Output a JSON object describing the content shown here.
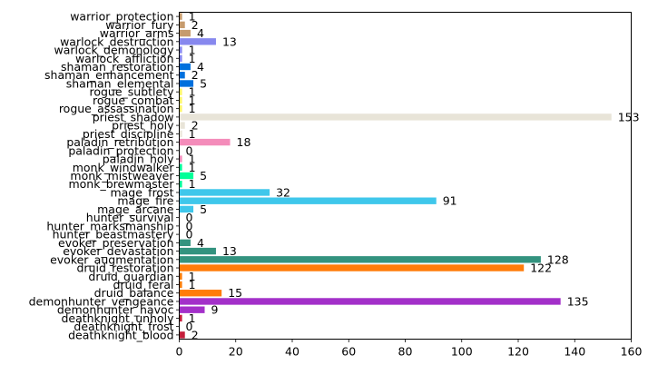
{
  "chart_data": {
    "type": "bar",
    "orientation": "horizontal",
    "categories": [
      "deathknight_blood",
      "deathknight_frost",
      "deathknight_unholy",
      "demonhunter_havoc",
      "demonhunter_vengeance",
      "druid_balance",
      "druid_feral",
      "druid_guardian",
      "druid_restoration",
      "evoker_augmentation",
      "evoker_devastation",
      "evoker_preservation",
      "hunter_beastmastery",
      "hunter_marksmanship",
      "hunter_survival",
      "mage_arcane",
      "mage_fire",
      "mage_frost",
      "monk_brewmaster",
      "monk_mistweaver",
      "monk_windwalker",
      "paladin_holy",
      "paladin_protection",
      "paladin_retribution",
      "priest_discipline",
      "priest_holy",
      "priest_shadow",
      "rogue_assassination",
      "rogue_combat",
      "rogue_subtlety",
      "shaman_elemental",
      "shaman_enhancement",
      "shaman_restoration",
      "warlock_affliction",
      "warlock_demonology",
      "warlock_destruction",
      "warrior_arms",
      "warrior_fury",
      "warrior_protection"
    ],
    "values": [
      2,
      0,
      1,
      9,
      135,
      15,
      1,
      1,
      122,
      128,
      13,
      4,
      0,
      0,
      0,
      5,
      91,
      32,
      1,
      5,
      1,
      1,
      0,
      18,
      1,
      2,
      153,
      1,
      1,
      1,
      5,
      2,
      4,
      1,
      1,
      13,
      4,
      2,
      1
    ],
    "value_labels": [
      "2",
      "0",
      "1",
      "9",
      "135",
      "15",
      "1",
      "1",
      "122",
      "128",
      "13",
      "4",
      "0",
      "0",
      "0",
      "5",
      "91",
      "32",
      "1",
      "5",
      "1",
      "1",
      "0",
      "18",
      "1",
      "2",
      "153",
      "1",
      "1",
      "1",
      "5",
      "2",
      "4",
      "1",
      "1",
      "13",
      "4",
      "2",
      "1"
    ],
    "colors": [
      "#C41E3A",
      "#C41E3A",
      "#C41E3A",
      "#A330C9",
      "#A330C9",
      "#FF7C0A",
      "#FF7C0A",
      "#FF7C0A",
      "#FF7C0A",
      "#33937F",
      "#33937F",
      "#33937F",
      "#AAD372",
      "#AAD372",
      "#AAD372",
      "#3FC7EB",
      "#3FC7EB",
      "#3FC7EB",
      "#00FF98",
      "#00FF98",
      "#00FF98",
      "#F48CBA",
      "#F48CBA",
      "#F48CBA",
      "#E8E4D8",
      "#E8E4D8",
      "#E8E4D8",
      "#FFF468",
      "#FFF468",
      "#FFF468",
      "#0070DD",
      "#0070DD",
      "#0070DD",
      "#8788EE",
      "#8788EE",
      "#8788EE",
      "#C69B6D",
      "#C69B6D",
      "#C69B6D"
    ],
    "xlim": [
      0,
      160
    ],
    "xticks": [
      0,
      20,
      40,
      60,
      80,
      100,
      120,
      140,
      160
    ],
    "xtick_labels": [
      "0",
      "20",
      "40",
      "60",
      "80",
      "100",
      "120",
      "140",
      "160"
    ],
    "title": "",
    "xlabel": "",
    "ylabel": "",
    "grid": false,
    "legend": "none"
  }
}
